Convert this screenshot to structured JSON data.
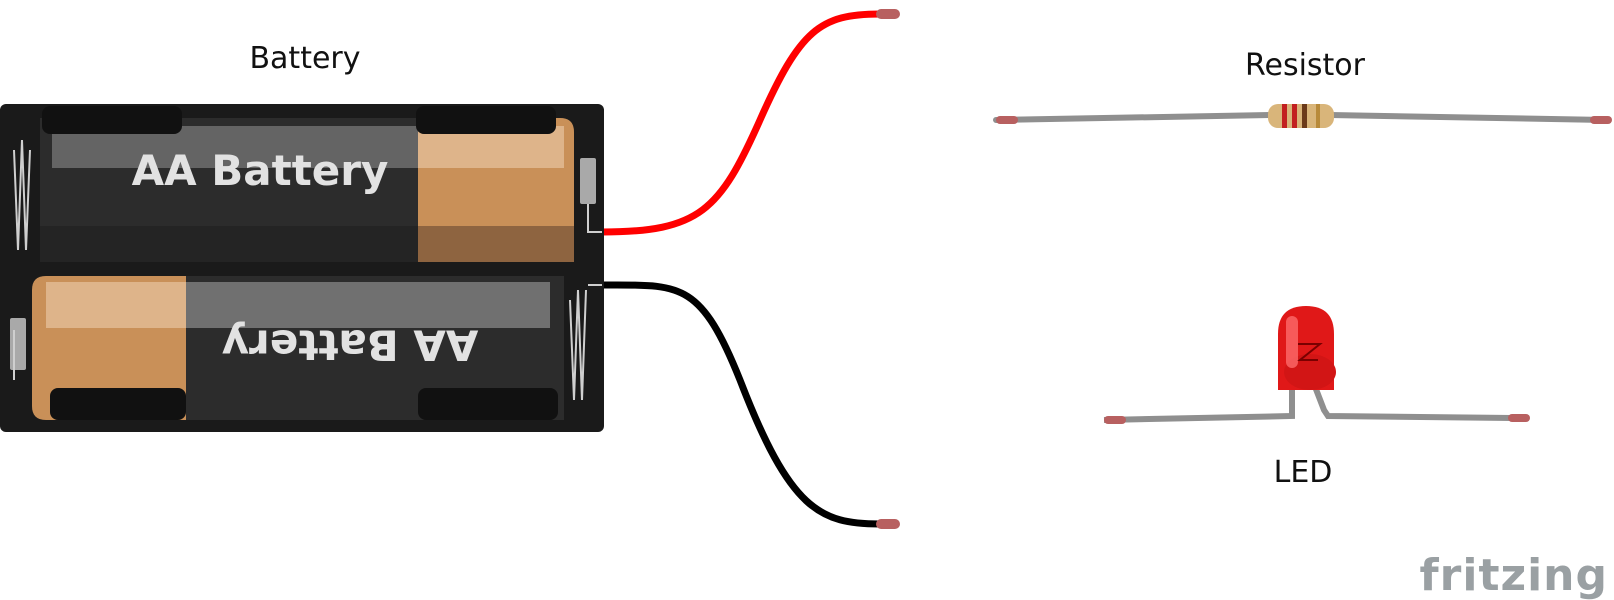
{
  "labels": {
    "battery": "Battery",
    "resistor": "Resistor",
    "led": "LED"
  },
  "battery_pack": {
    "cell_1_text": "AA Battery",
    "cell_2_text": "AA Battery"
  },
  "brand": "fritzing",
  "colors": {
    "positive_wire": "#ff0000",
    "negative_wire": "#000000",
    "holder": "#1a1a1a",
    "battery_body": "#2c2c2c",
    "battery_cap": "#c99058",
    "lead": "#8f8f8f",
    "lead_tip": "#b86060",
    "led": "#e01818",
    "resistor_body": "#d9b57a"
  }
}
